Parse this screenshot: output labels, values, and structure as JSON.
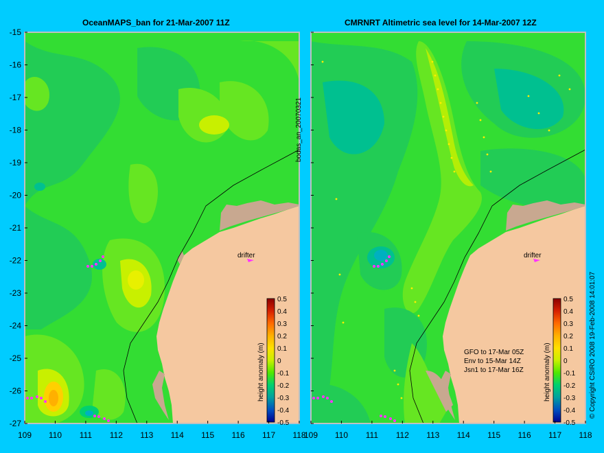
{
  "left_panel": {
    "title": "OceanMAPS_ban for 21-Mar-2007 11Z",
    "side_label": "bodas_an_20070321",
    "drifter_label": "drifter",
    "colorbar_label": "height anomaly (m)"
  },
  "right_panel": {
    "title": "CMRNRT Altimetric sea level  for 14-Mar-2007 12Z",
    "drifter_label": "drifter",
    "colorbar_label": "height anomaly (m)",
    "satellite_info": [
      "GFO to 17-Mar 05Z",
      "Env to 15-Mar 14Z",
      "Jsn1 to 17-Mar 16Z"
    ]
  },
  "copyright": "© Copyright CSIRO 2008  19-Feb-2008 14:01:07",
  "axes": {
    "lon_ticks": [
      "109",
      "110",
      "111",
      "112",
      "113",
      "114",
      "115",
      "116",
      "117",
      "118"
    ],
    "lat_ticks": [
      "-15",
      "-16",
      "-17",
      "-18",
      "-19",
      "-20",
      "-21",
      "-22",
      "-23",
      "-24",
      "-25",
      "-26",
      "-27"
    ]
  },
  "colorbar": {
    "ticks": [
      "0.5",
      "0.4",
      "0.3",
      "0.2",
      "0.1",
      "0",
      "-0.1",
      "-0.2",
      "-0.3",
      "-0.4",
      "-0.5"
    ],
    "colors": [
      "#8b0000",
      "#d62000",
      "#ff6a00",
      "#ffb000",
      "#ffe000",
      "#c8f000",
      "#50e800",
      "#00d070",
      "#00a0a0",
      "#0050c0",
      "#000090"
    ]
  },
  "colors": {
    "background": "#00ccff",
    "ocean_base": "#33dd33",
    "land": "#f5c8a0",
    "shelf": "#c8a890",
    "drifter_track": "#ff33ff"
  }
}
